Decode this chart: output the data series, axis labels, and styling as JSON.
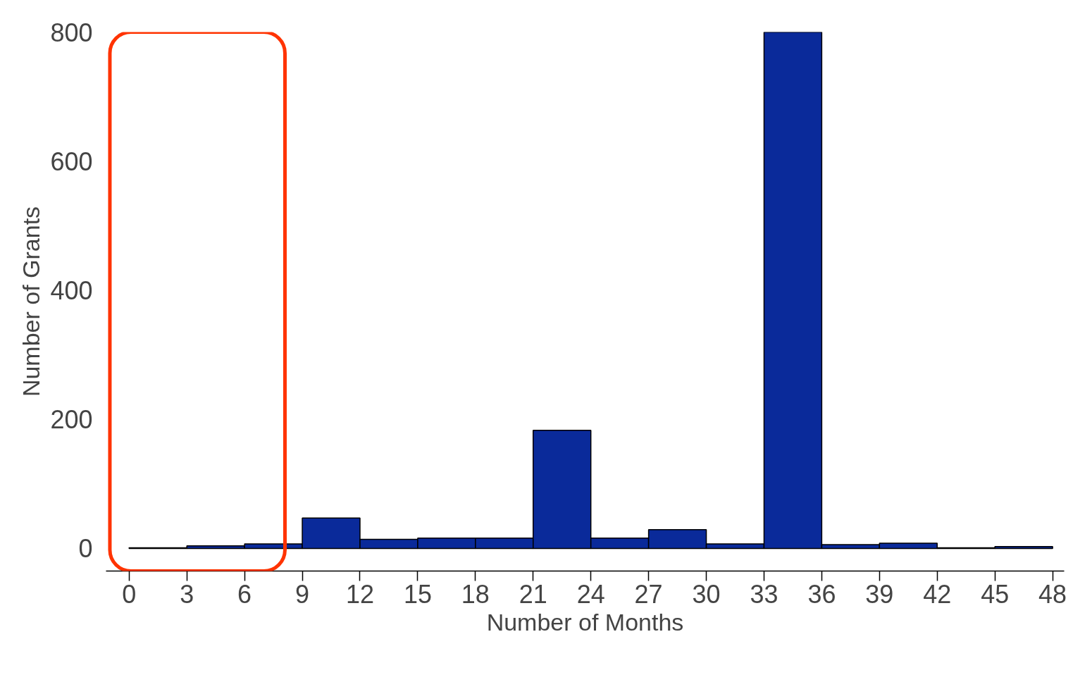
{
  "chart_data": {
    "type": "histogram",
    "xlabel": "Number of Months",
    "ylabel": "Number of Grants",
    "bins": [
      0,
      3,
      6,
      9,
      12,
      15,
      18,
      21,
      24,
      27,
      30,
      33,
      36,
      39,
      42,
      45,
      48
    ],
    "values": [
      1,
      4,
      7,
      47,
      14,
      16,
      16,
      183,
      16,
      29,
      7,
      800,
      6,
      8,
      1,
      3
    ],
    "color": "#0a2a9a",
    "xlim": [
      -1.2,
      48.6
    ],
    "ylim": [
      -35,
      800
    ],
    "xticks": [
      0,
      3,
      6,
      9,
      12,
      15,
      18,
      21,
      24,
      27,
      30,
      33,
      36,
      39,
      42,
      45,
      48
    ],
    "yticks": [
      0,
      200,
      400,
      600,
      800
    ]
  }
}
